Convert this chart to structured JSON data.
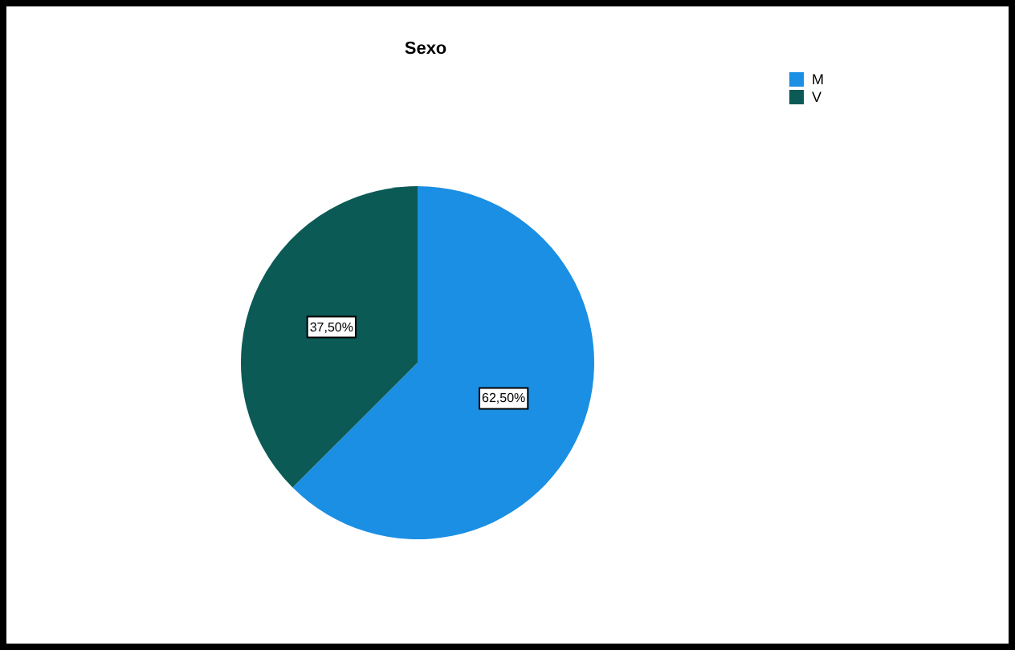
{
  "chart_data": {
    "type": "pie",
    "title": "Sexo",
    "categories": [
      "M",
      "V"
    ],
    "values": [
      62.5,
      37.5
    ],
    "colors": [
      "#1a8fe3",
      "#0b5a55"
    ],
    "value_labels": [
      "62,50%",
      "37,50%"
    ],
    "legend": "top right"
  }
}
